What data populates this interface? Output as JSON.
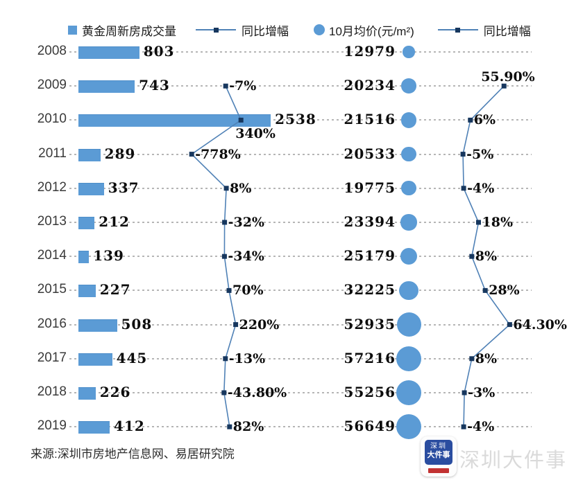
{
  "legend": {
    "bar_label": "黄金周新房成交量",
    "line1_label": "同比增幅",
    "bubble_label": "10月均价(元/m²)",
    "line2_label": "同比增幅"
  },
  "footer": {
    "source": "来源:深圳市房地产信息网、易居研究院",
    "watermark": "深圳大件事",
    "logo_line1": "深圳",
    "logo_line2": "大件事"
  },
  "colors": {
    "bar": "#5b9bd5",
    "bubble": "#5b9bd5",
    "line": "#4f81b6",
    "marker": "#17375e",
    "grid_dots": "#b5b5b5",
    "value_text": "#0c0c0c",
    "year_text": "#3a3a3a",
    "watermark_text": "#dadada",
    "logo_blue": "#2a4da0",
    "logo_red": "#c23232"
  },
  "chart_data": {
    "type": "combo-bar-line-bubble",
    "title": "",
    "legend_position": "top",
    "grid": "horizontal dotted line per category row",
    "categories": [
      "2008",
      "2009",
      "2010",
      "2011",
      "2012",
      "2013",
      "2014",
      "2015",
      "2016",
      "2017",
      "2018",
      "2019"
    ],
    "series": [
      {
        "name": "黄金周新房成交量",
        "type": "bar",
        "values": [
          803,
          743,
          2538,
          289,
          337,
          212,
          139,
          227,
          508,
          445,
          226,
          412
        ],
        "labels": [
          "803",
          "743",
          "2538",
          "289",
          "337",
          "212",
          "139",
          "227",
          "508",
          "445",
          "226",
          "412"
        ]
      },
      {
        "name": "同比增幅",
        "type": "line",
        "values": [
          null,
          -7,
          340,
          -778,
          8,
          -32,
          -34,
          70,
          220,
          -13,
          -43.8,
          82
        ],
        "labels": [
          "",
          "-7%",
          "340%",
          "-778%",
          "8%",
          "-32%",
          "-34%",
          "70%",
          "220%",
          "-13%",
          "-43.80%",
          "82%"
        ],
        "label_pos": [
          "",
          "right",
          "below",
          "right",
          "right",
          "right",
          "right",
          "right",
          "right",
          "right",
          "right",
          "right"
        ]
      },
      {
        "name": "10月均价(元/m²)",
        "type": "bubble",
        "values": [
          12979,
          20234,
          21516,
          20533,
          19775,
          23394,
          25179,
          32225,
          52935,
          57216,
          55256,
          56649
        ],
        "labels": [
          "12979",
          "20234",
          "21516",
          "20533",
          "19775",
          "23394",
          "25179",
          "32225",
          "52935",
          "57216",
          "55256",
          "56649"
        ]
      },
      {
        "name": "同比增幅",
        "type": "line",
        "values": [
          null,
          55.9,
          6,
          -5,
          -4,
          18,
          8,
          28,
          64.3,
          8,
          -3,
          -4
        ],
        "labels": [
          "",
          "55.90%",
          "6%",
          "-5%",
          "-4%",
          "18%",
          "8%",
          "28%",
          "64.30%",
          "8%",
          "-3%",
          "-4%"
        ],
        "label_pos": [
          "",
          "above",
          "right",
          "right",
          "right",
          "right",
          "right",
          "right",
          "right",
          "right",
          "right",
          "right"
        ]
      }
    ]
  }
}
